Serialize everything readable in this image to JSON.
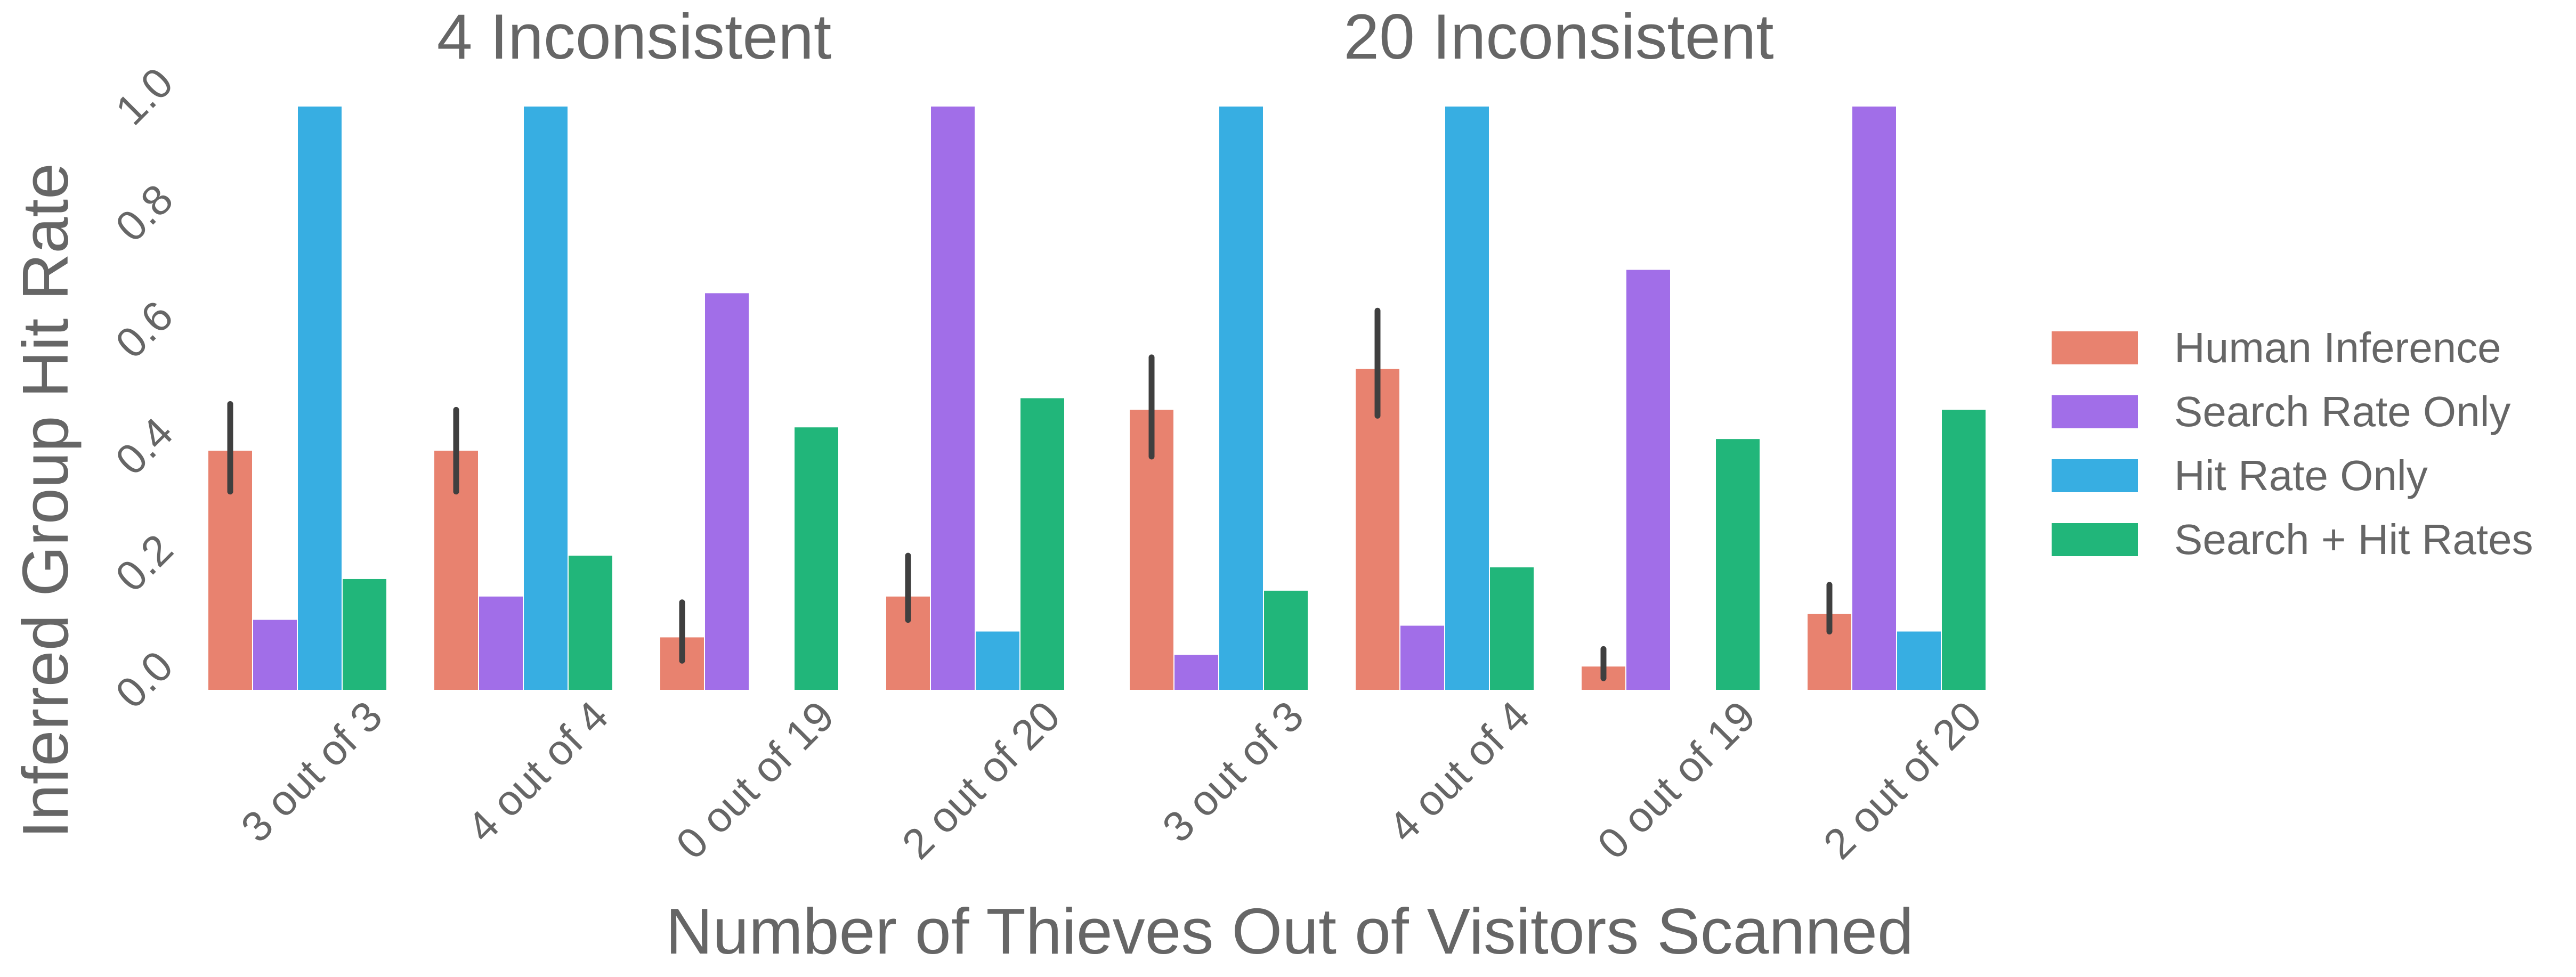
{
  "chart_data": {
    "type": "bar",
    "xlabel": "Number of Thieves Out of Visitors Scanned",
    "ylabel": "Inferred Group Hit Rate",
    "ylim": [
      0,
      1.0
    ],
    "yticks": [
      "0.0",
      "0.2",
      "0.4",
      "0.6",
      "0.8",
      "1.0"
    ],
    "grid": false,
    "legend_position": "right",
    "legend": [
      {
        "name": "Human Inference",
        "color": "#E8826F"
      },
      {
        "name": "Search Rate Only",
        "color": "#A16EE8"
      },
      {
        "name": "Hit Rate Only",
        "color": "#37AEE2"
      },
      {
        "name": "Search + Hit Rates",
        "color": "#21B67A"
      }
    ],
    "panels": [
      {
        "title": "4 Inconsistent",
        "categories": [
          "3 out of 3",
          "4 out of 4",
          "0 out of 19",
          "2 out of 20"
        ],
        "series": [
          {
            "name": "Human Inference",
            "values": [
              0.41,
              0.41,
              0.09,
              0.16
            ],
            "error_low": [
              0.34,
              0.34,
              0.05,
              0.12
            ],
            "error_high": [
              0.49,
              0.48,
              0.15,
              0.23
            ]
          },
          {
            "name": "Search Rate Only",
            "values": [
              0.12,
              0.16,
              0.68,
              1.0
            ]
          },
          {
            "name": "Hit Rate Only",
            "values": [
              1.0,
              1.0,
              0.0,
              0.1
            ]
          },
          {
            "name": "Search + Hit Rates",
            "values": [
              0.19,
              0.23,
              0.45,
              0.5
            ]
          }
        ]
      },
      {
        "title": "20 Inconsistent",
        "categories": [
          "3 out of 3",
          "4 out of 4",
          "0 out of 19",
          "2 out of 20"
        ],
        "series": [
          {
            "name": "Human Inference",
            "values": [
              0.48,
              0.55,
              0.04,
              0.13
            ],
            "error_low": [
              0.4,
              0.47,
              0.02,
              0.1
            ],
            "error_high": [
              0.57,
              0.65,
              0.07,
              0.18
            ]
          },
          {
            "name": "Search Rate Only",
            "values": [
              0.06,
              0.11,
              0.72,
              1.0
            ]
          },
          {
            "name": "Hit Rate Only",
            "values": [
              1.0,
              1.0,
              0.0,
              0.1
            ]
          },
          {
            "name": "Search + Hit Rates",
            "values": [
              0.17,
              0.21,
              0.43,
              0.48
            ]
          }
        ]
      }
    ]
  }
}
